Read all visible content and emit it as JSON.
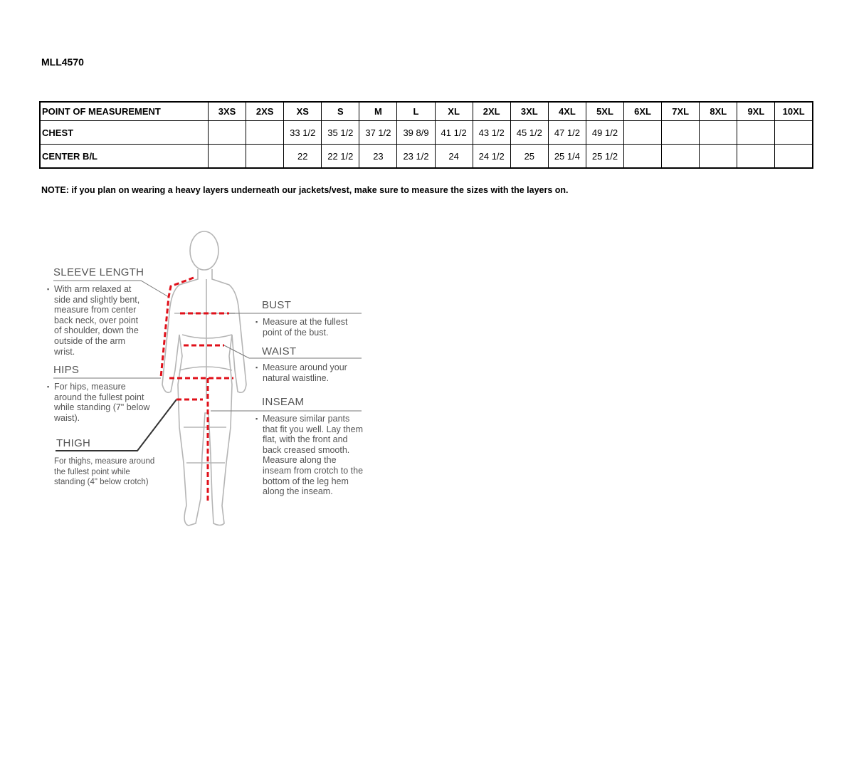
{
  "style_code": "MLL4570",
  "table": {
    "headers": [
      "POINT OF MEASUREMENT",
      "3XS",
      "2XS",
      "XS",
      "S",
      "M",
      "L",
      "XL",
      "2XL",
      "3XL",
      "4XL",
      "5XL",
      "6XL",
      "7XL",
      "8XL",
      "9XL",
      "10XL"
    ],
    "rows": [
      {
        "label": "CHEST",
        "values": [
          "",
          "",
          "33 1/2",
          "35 1/2",
          "37 1/2",
          "39 8/9",
          "41 1/2",
          "43 1/2",
          "45 1/2",
          "47 1/2",
          "49 1/2",
          "",
          "",
          "",
          "",
          ""
        ]
      },
      {
        "label": "CENTER B/L",
        "values": [
          "",
          "",
          "22",
          "22 1/2",
          "23",
          "23 1/2",
          "24",
          "24 1/2",
          "25",
          "25 1/4",
          "25 1/2",
          "",
          "",
          "",
          "",
          ""
        ]
      }
    ]
  },
  "note": "NOTE: if you plan on wearing a heavy layers underneath our jackets/vest, make sure to measure the sizes with the layers on.",
  "guide": {
    "sleeve": {
      "title": "SLEEVE LENGTH",
      "text": "With arm relaxed at side and slightly bent, measure from center back neck, over point of shoulder, down the outside of the arm wrist."
    },
    "hips": {
      "title": "HIPS",
      "text": "For hips, measure around the fullest point while standing (7\" below waist)."
    },
    "thigh": {
      "title": "THIGH",
      "text": "For thighs, measure around the fullest point while standing (4\" below crotch)"
    },
    "bust": {
      "title": "BUST",
      "text": "Measure at the fullest point of the bust."
    },
    "waist": {
      "title": "WAIST",
      "text": "Measure around your natural waistline."
    },
    "inseam": {
      "title": "INSEAM",
      "text": "Measure similar pants that fit you well. Lay them flat, with the front and back creased smooth. Measure along the inseam from crotch to the bottom of the leg hem along the inseam."
    }
  },
  "colors": {
    "measure_line": "#e0101a",
    "figure": "#b5b5b5"
  }
}
